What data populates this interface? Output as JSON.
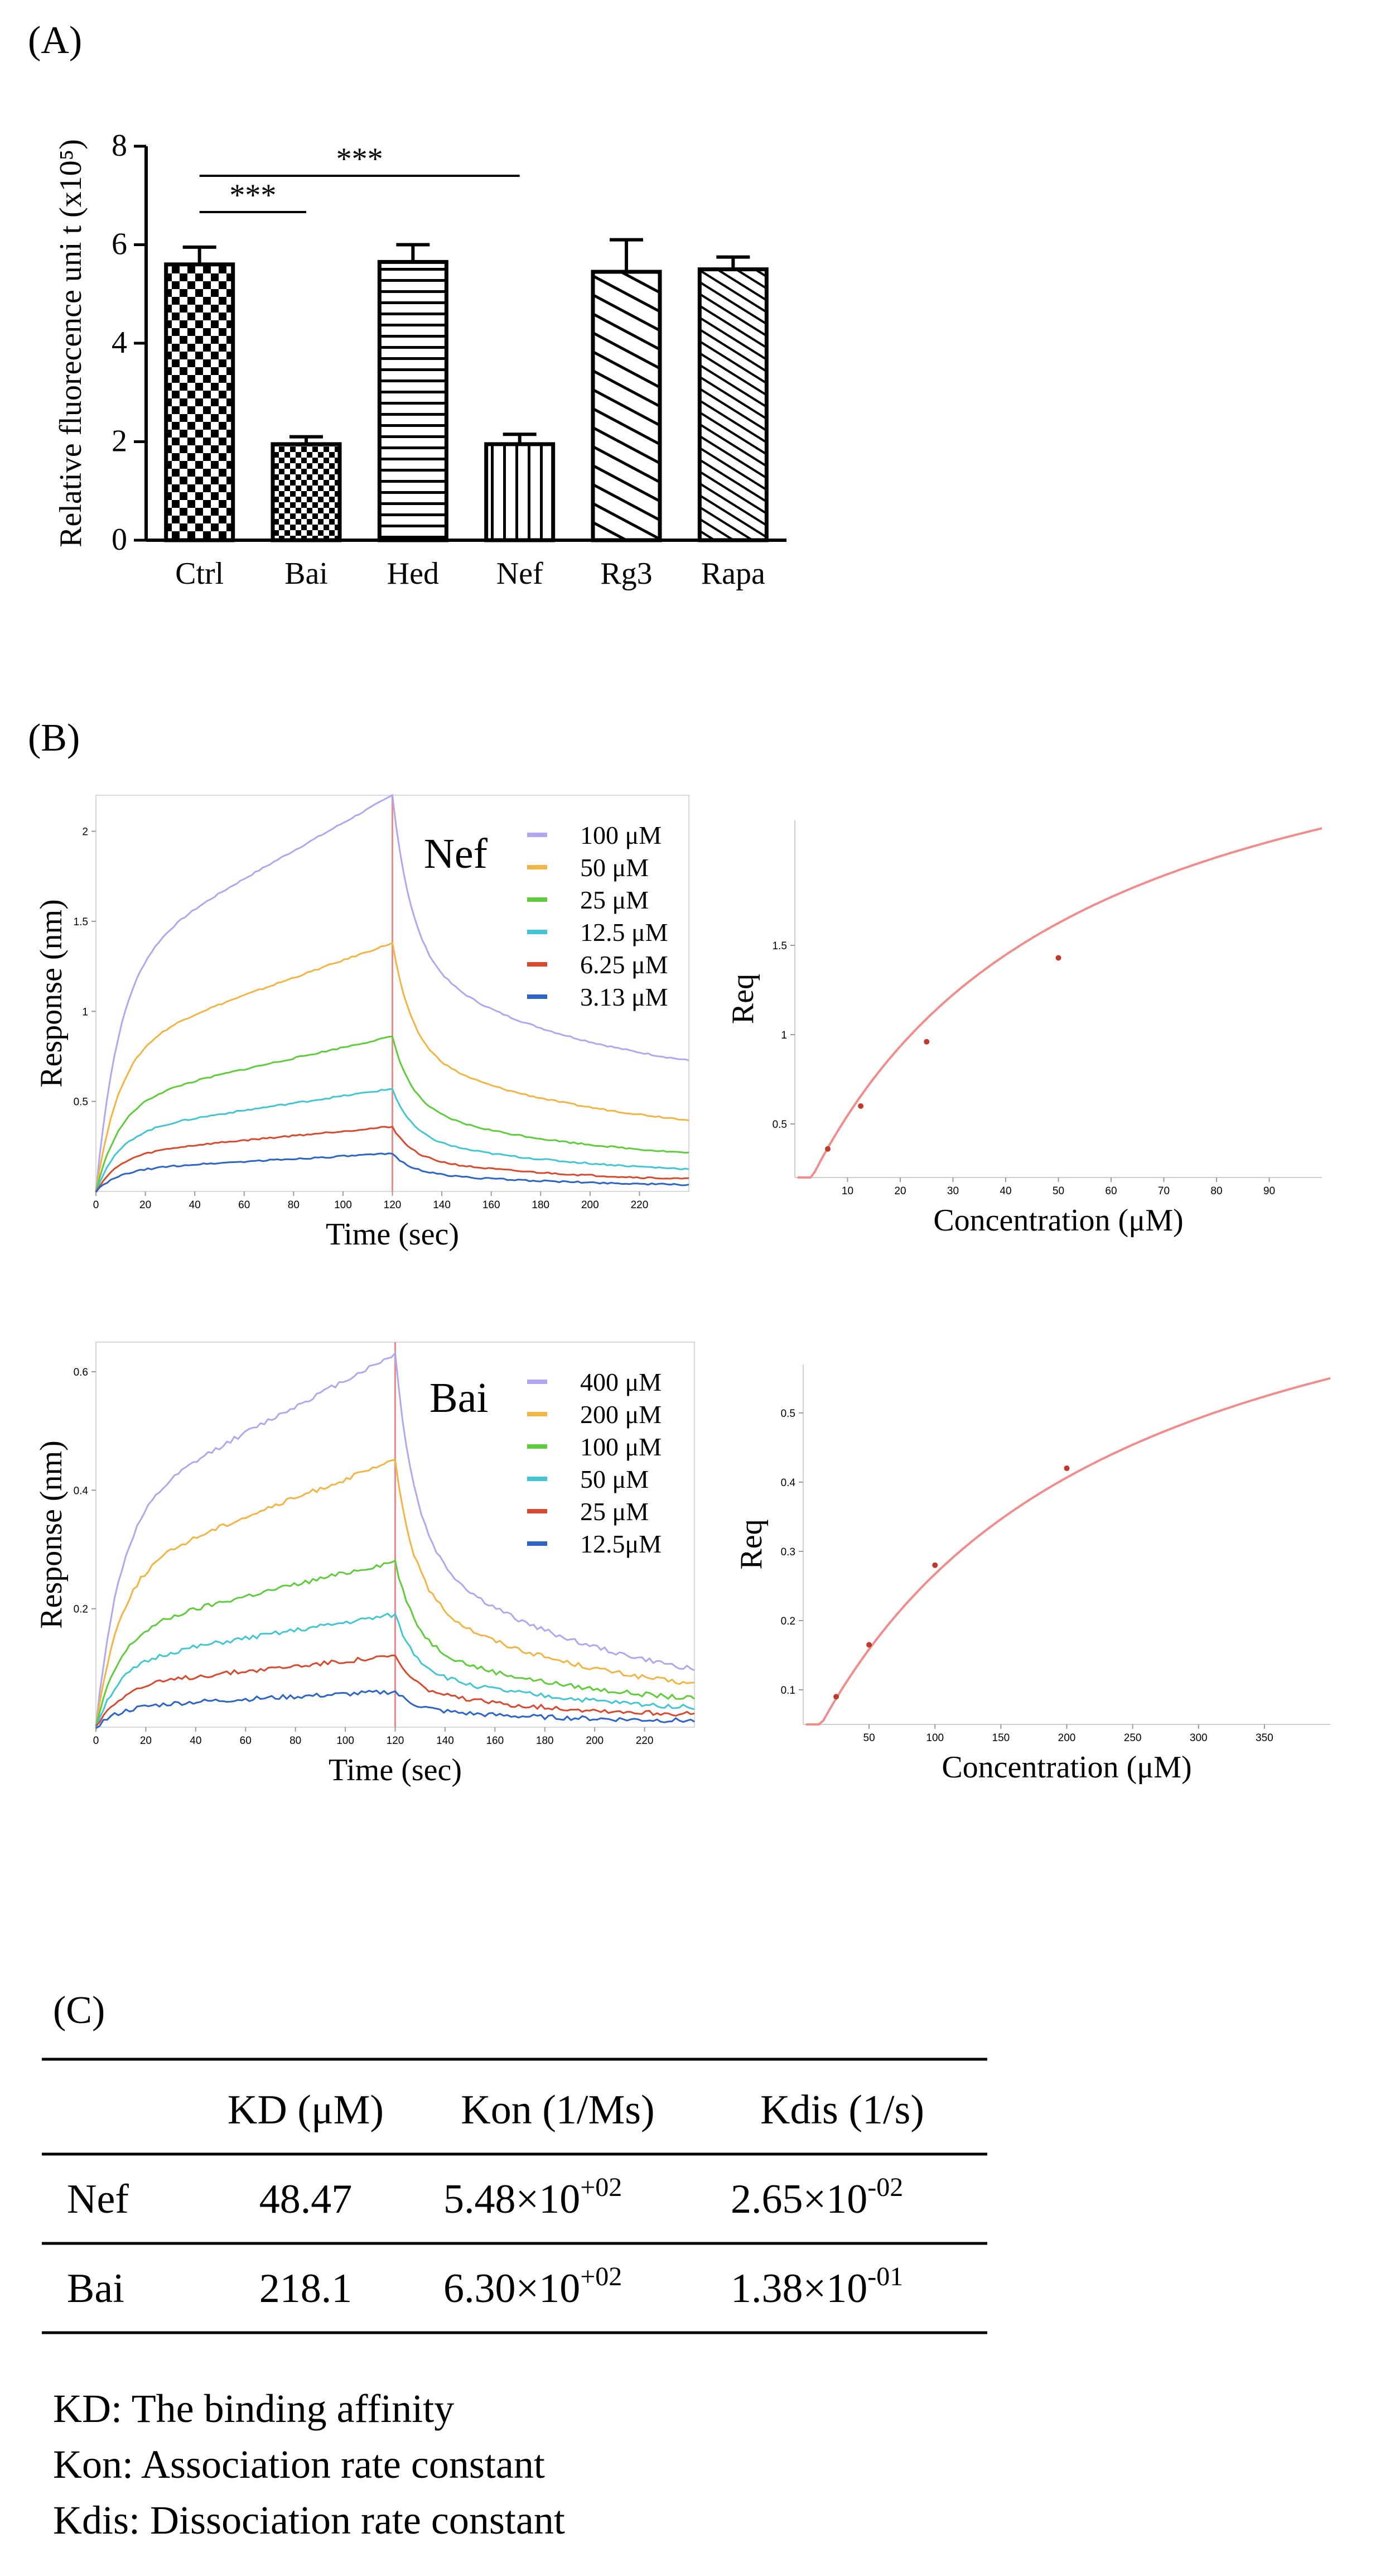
{
  "panels": {
    "A": {
      "label": "(A)",
      "chart_data": {
        "type": "bar",
        "ylabel": "Relative fluorecence uni t (x10⁵)",
        "ylim": [
          0,
          8
        ],
        "yticks": [
          "0",
          "2",
          "4",
          "6",
          "8"
        ],
        "categories": [
          "Ctrl",
          "Bai",
          "Hed",
          "Nef",
          "Rg3",
          "Rapa"
        ],
        "values": [
          5.6,
          1.95,
          5.65,
          1.95,
          5.45,
          5.5
        ],
        "errors": [
          0.35,
          0.15,
          0.35,
          0.2,
          0.65,
          0.25
        ],
        "patterns": [
          "checker-large",
          "checker-small",
          "horizontal",
          "vertical",
          "diagonal-wide",
          "diagonal-fine"
        ],
        "significance": [
          {
            "from": "Ctrl",
            "to": "Bai",
            "label": "***"
          },
          {
            "from": "Ctrl",
            "to": "Nef",
            "label": "***"
          }
        ]
      }
    },
    "B": {
      "label": "(B)",
      "sensorgrams": [
        {
          "compound": "Nef",
          "xlabel": "Time  (sec)",
          "ylabel": "Response (nm)",
          "xlim": [
            0,
            240
          ],
          "ylim": [
            0,
            2.2
          ],
          "xticks": [
            "0",
            "20",
            "40",
            "60",
            "80",
            "100",
            "120",
            "140",
            "160",
            "180",
            "200",
            "220"
          ],
          "yticks": [
            "0.5",
            "1",
            "1.5",
            "2"
          ],
          "injection_end": 120,
          "legend": [
            {
              "label": "100 μM",
              "color": "#b3a6f0"
            },
            {
              "label": "50 μM",
              "color": "#f2b443"
            },
            {
              "label": "25 μM",
              "color": "#5fcc3c"
            },
            {
              "label": "12.5 μM",
              "color": "#43c6d3"
            },
            {
              "label": "6.25 μM",
              "color": "#d9492e"
            },
            {
              "label": "3.13 μM",
              "color": "#2d64c8"
            }
          ],
          "series": [
            {
              "plateau": 2.2,
              "end": 0.58
            },
            {
              "plateau": 1.38,
              "end": 0.3
            },
            {
              "plateau": 0.86,
              "end": 0.15
            },
            {
              "plateau": 0.57,
              "end": 0.08
            },
            {
              "plateau": 0.36,
              "end": 0.04
            },
            {
              "plateau": 0.21,
              "end": 0.02
            }
          ]
        },
        {
          "compound": "Bai",
          "xlabel": "Time  (sec)",
          "ylabel": "Response (nm)",
          "xlim": [
            0,
            240
          ],
          "ylim": [
            0,
            0.65
          ],
          "xticks": [
            "0",
            "20",
            "40",
            "60",
            "80",
            "100",
            "120",
            "140",
            "160",
            "180",
            "200",
            "220"
          ],
          "yticks": [
            "0.2",
            "0.4",
            "0.6"
          ],
          "injection_end": 120,
          "legend": [
            {
              "label": "400 μM",
              "color": "#b3a6f0"
            },
            {
              "label": "200 μM",
              "color": "#f2b443"
            },
            {
              "label": "100 μM",
              "color": "#5fcc3c"
            },
            {
              "label": "50 μM",
              "color": "#43c6d3"
            },
            {
              "label": "25 μM",
              "color": "#d9492e"
            },
            {
              "label": "12.5μM",
              "color": "#2d64c8"
            }
          ],
          "series": [
            {
              "plateau": 0.63,
              "end": 0.045
            },
            {
              "plateau": 0.45,
              "end": 0.035
            },
            {
              "plateau": 0.28,
              "end": 0.025
            },
            {
              "plateau": 0.19,
              "end": 0.018
            },
            {
              "plateau": 0.12,
              "end": 0.012
            },
            {
              "plateau": 0.06,
              "end": 0.006
            }
          ]
        }
      ],
      "steady_state": [
        {
          "xlabel": "Concentration  (μM)",
          "ylabel": "Req",
          "xlim": [
            0,
            100
          ],
          "ylim": [
            0.2,
            2.2
          ],
          "xticks": [
            "10",
            "20",
            "30",
            "40",
            "50",
            "60",
            "70",
            "80",
            "90"
          ],
          "yticks": [
            "0.5",
            "1",
            "1.5"
          ],
          "rmax": 3.2,
          "kd": 48.47,
          "points": [
            [
              6.25,
              0.36
            ],
            [
              12.5,
              0.6
            ],
            [
              25,
              0.96
            ],
            [
              50,
              1.43
            ]
          ]
        },
        {
          "xlabel": "Concentration  (μM)",
          "ylabel": "Req",
          "xlim": [
            0,
            400
          ],
          "ylim": [
            0.05,
            0.57
          ],
          "xticks": [
            "50",
            "100",
            "150",
            "200",
            "250",
            "300",
            "350"
          ],
          "yticks": [
            "0.1",
            "0.2",
            "0.3",
            "0.4",
            "0.5"
          ],
          "rmax": 0.85,
          "kd": 218.1,
          "points": [
            [
              25,
              0.09
            ],
            [
              50,
              0.165
            ],
            [
              100,
              0.28
            ],
            [
              200,
              0.42
            ]
          ]
        }
      ]
    },
    "C": {
      "label": "(C)",
      "chart_data": {
        "type": "table",
        "headers": [
          "",
          "KD (μM)",
          "Kon (1/Ms)",
          "Kdis (1/s)"
        ],
        "rows": [
          {
            "name": "Nef",
            "kd": "48.47",
            "kon_base": "5.48×10",
            "kon_exp": "+02",
            "kdis_base": "2.65×10",
            "kdis_exp": "-02"
          },
          {
            "name": "Bai",
            "kd": "218.1",
            "kon_base": "6.30×10",
            "kon_exp": "+02",
            "kdis_base": "1.38×10",
            "kdis_exp": "-01"
          }
        ]
      },
      "notes": [
        "KD: The binding affinity",
        "Kon: Association rate constant",
        "Kdis: Dissociation rate constant"
      ]
    }
  }
}
